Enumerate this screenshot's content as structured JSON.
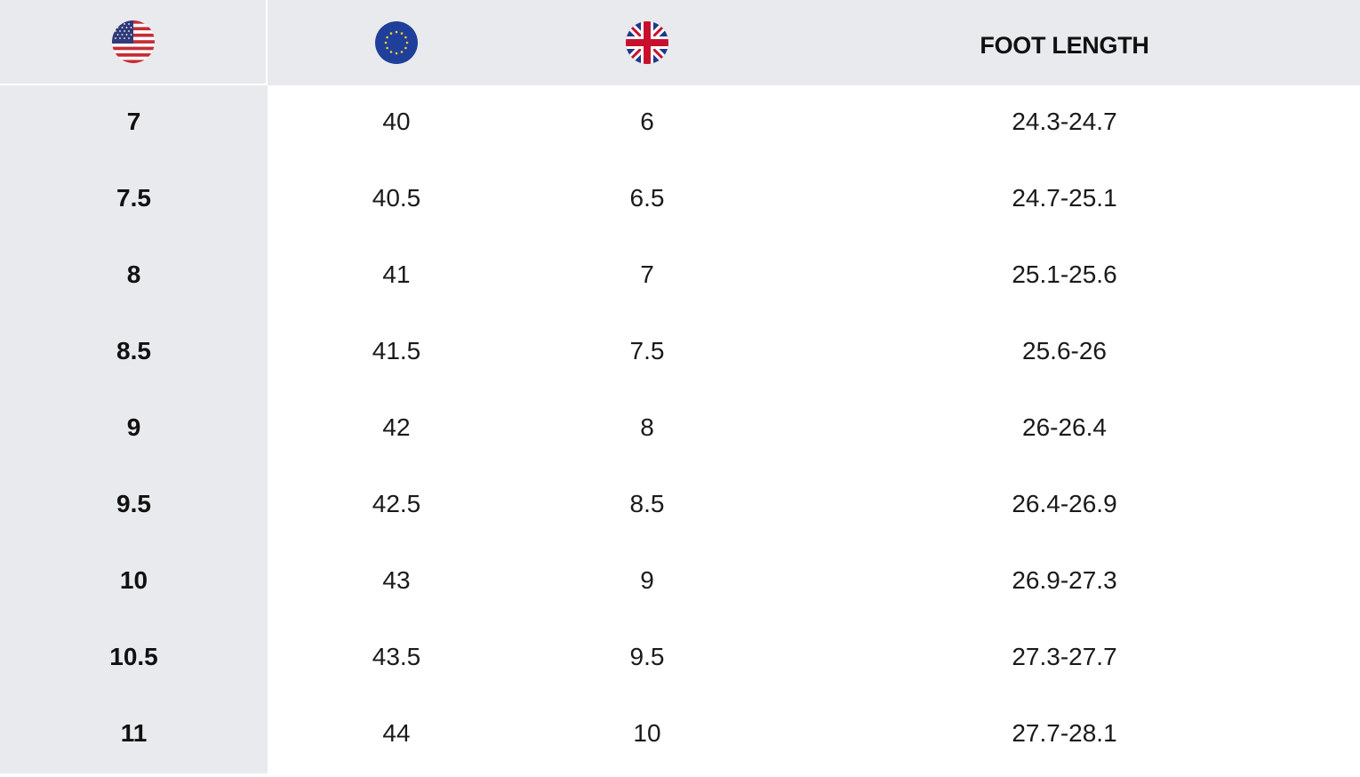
{
  "header": {
    "us_flag_icon": "us-flag-icon",
    "eu_flag_icon": "eu-flag-icon",
    "uk_flag_icon": "uk-flag-icon",
    "foot_length_label": "FOOT LENGTH"
  },
  "rows": [
    {
      "us": "7",
      "eu": "40",
      "uk": "6",
      "foot": "24.3-24.7"
    },
    {
      "us": "7.5",
      "eu": "40.5",
      "uk": "6.5",
      "foot": "24.7-25.1"
    },
    {
      "us": "8",
      "eu": "41",
      "uk": "7",
      "foot": "25.1-25.6"
    },
    {
      "us": "8.5",
      "eu": "41.5",
      "uk": "7.5",
      "foot": "25.6-26"
    },
    {
      "us": "9",
      "eu": "42",
      "uk": "8",
      "foot": "26-26.4"
    },
    {
      "us": "9.5",
      "eu": "42.5",
      "uk": "8.5",
      "foot": "26.4-26.9"
    },
    {
      "us": "10",
      "eu": "43",
      "uk": "9",
      "foot": "26.9-27.3"
    },
    {
      "us": "10.5",
      "eu": "43.5",
      "uk": "9.5",
      "foot": "27.3-27.7"
    },
    {
      "us": "11",
      "eu": "44",
      "uk": "10",
      "foot": "27.7-28.1"
    }
  ],
  "colors": {
    "header_bg": "#e8eaed",
    "us_column_bg": "#e8eaed",
    "body_bg": "#ffffff",
    "text": "#111111"
  }
}
